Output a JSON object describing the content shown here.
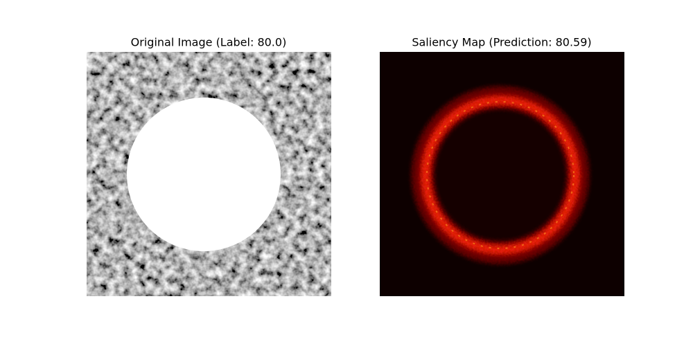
{
  "panels": [
    {
      "title": "Original Image (Label: 80.0)"
    },
    {
      "title": "Saliency Map (Prediction: 80.59)"
    }
  ]
}
